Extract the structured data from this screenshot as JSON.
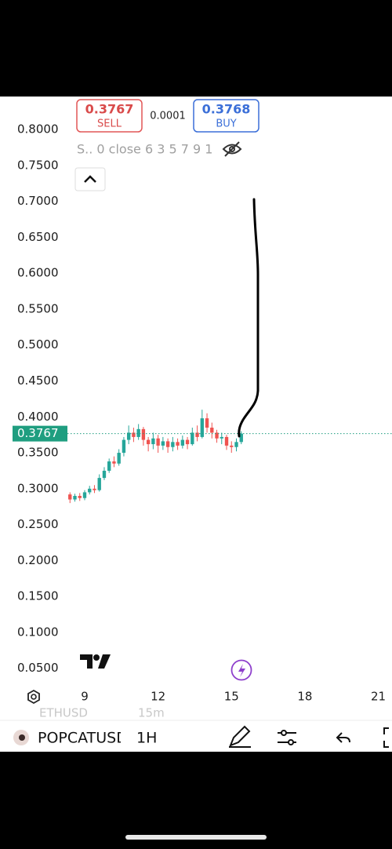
{
  "chart_data": {
    "type": "candlestick",
    "x": [
      8.4,
      8.6,
      8.8,
      9.0,
      9.2,
      9.4,
      9.6,
      9.8,
      10.0,
      10.2,
      10.4,
      10.6,
      10.8,
      11.0,
      11.2,
      11.4,
      11.6,
      11.8,
      12.0,
      12.2,
      12.4,
      12.6,
      12.8,
      13.0,
      13.2,
      13.4,
      13.6,
      13.8,
      14.0,
      14.2,
      14.4,
      14.6,
      14.8,
      15.0,
      15.2,
      15.4
    ],
    "open": [
      0.292,
      0.285,
      0.29,
      0.287,
      0.295,
      0.3,
      0.298,
      0.315,
      0.325,
      0.338,
      0.335,
      0.35,
      0.368,
      0.378,
      0.372,
      0.383,
      0.368,
      0.362,
      0.37,
      0.36,
      0.366,
      0.358,
      0.365,
      0.36,
      0.368,
      0.362,
      0.378,
      0.372,
      0.398,
      0.385,
      0.378,
      0.37,
      0.372,
      0.36,
      0.358,
      0.365
    ],
    "high": [
      0.295,
      0.293,
      0.294,
      0.298,
      0.304,
      0.305,
      0.32,
      0.33,
      0.342,
      0.345,
      0.355,
      0.372,
      0.388,
      0.385,
      0.39,
      0.386,
      0.372,
      0.378,
      0.375,
      0.372,
      0.37,
      0.372,
      0.37,
      0.374,
      0.372,
      0.385,
      0.388,
      0.41,
      0.405,
      0.392,
      0.382,
      0.378,
      0.375,
      0.366,
      0.37,
      0.38
    ],
    "low": [
      0.28,
      0.282,
      0.283,
      0.284,
      0.292,
      0.294,
      0.296,
      0.312,
      0.322,
      0.33,
      0.332,
      0.345,
      0.362,
      0.365,
      0.368,
      0.36,
      0.352,
      0.355,
      0.35,
      0.354,
      0.35,
      0.352,
      0.354,
      0.356,
      0.355,
      0.36,
      0.366,
      0.37,
      0.378,
      0.37,
      0.364,
      0.362,
      0.354,
      0.35,
      0.352,
      0.362
    ],
    "close": [
      0.285,
      0.29,
      0.287,
      0.295,
      0.3,
      0.298,
      0.315,
      0.325,
      0.338,
      0.335,
      0.35,
      0.368,
      0.378,
      0.372,
      0.383,
      0.368,
      0.362,
      0.37,
      0.36,
      0.366,
      0.358,
      0.365,
      0.36,
      0.368,
      0.362,
      0.378,
      0.372,
      0.398,
      0.385,
      0.378,
      0.37,
      0.372,
      0.36,
      0.358,
      0.365,
      0.3767
    ],
    "up_color": "#26a69a",
    "down_color": "#ef5350",
    "last_price": 0.3767,
    "last_price_color": "#1f9e80",
    "xlim": [
      5.54,
      21.56
    ],
    "ylim": [
      0.03,
      0.846
    ],
    "xticks": [
      9,
      12,
      15,
      18,
      21
    ],
    "yticks": [
      {
        "value": 0.8,
        "label": "0.8000"
      },
      {
        "value": 0.75,
        "label": "0.7500"
      },
      {
        "value": 0.7,
        "label": "0.7000"
      },
      {
        "value": 0.65,
        "label": "0.6500"
      },
      {
        "value": 0.6,
        "label": "0.6000"
      },
      {
        "value": 0.55,
        "label": "0.5500"
      },
      {
        "value": 0.5,
        "label": "0.5000"
      },
      {
        "value": 0.45,
        "label": "0.4500"
      },
      {
        "value": 0.4,
        "label": "0.4000"
      },
      {
        "value": 0.35,
        "label": "0.3500"
      },
      {
        "value": 0.3,
        "label": "0.3000"
      },
      {
        "value": 0.25,
        "label": "0.2500"
      },
      {
        "value": 0.2,
        "label": "0.2000"
      },
      {
        "value": 0.15,
        "label": "0.1500"
      },
      {
        "value": 0.1,
        "label": "0.1000"
      },
      {
        "value": 0.05,
        "label": "0.0500"
      }
    ]
  },
  "quotes": {
    "sell_price": "0.3767",
    "sell_label": "SELL",
    "spread": "0.0001",
    "buy_price": "0.3768",
    "buy_label": "BUY"
  },
  "indicator_legend": "S.. 0 close 6 3 5 7 9 1",
  "faded_row": {
    "symbol": "ETHUSD",
    "interval": "15m"
  },
  "toolbar": {
    "symbol": "POPCATUSD",
    "interval": "1H"
  }
}
